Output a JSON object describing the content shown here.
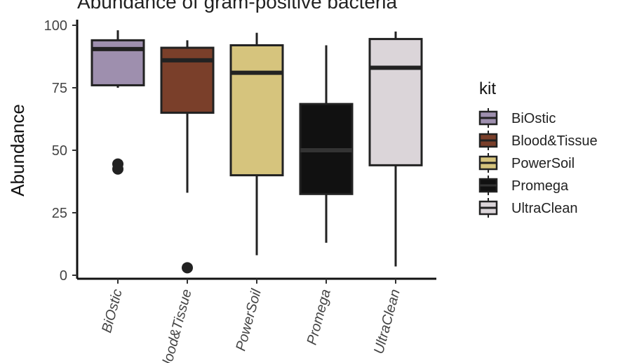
{
  "chart_data": {
    "type": "boxplot",
    "title": "Abundance of gram-positive bacteria",
    "ylabel": "Abundance",
    "xlabel": "",
    "ylim": [
      0,
      100
    ],
    "yticks": [
      0,
      25,
      50,
      75,
      100
    ],
    "categories": [
      "BiOstic",
      "Blood&Tissue",
      "PowerSoil",
      "Promega",
      "UltraClean"
    ],
    "boxes": [
      {
        "name": "BiOstic",
        "whisker_low": 75,
        "q1": 76,
        "median": 90.5,
        "q3": 94,
        "whisker_high": 98,
        "outliers": [
          42.5,
          44.5
        ],
        "fill": "#9e8fae"
      },
      {
        "name": "Blood&Tissue",
        "whisker_low": 33,
        "q1": 65,
        "median": 86,
        "q3": 91,
        "whisker_high": 94,
        "outliers": [
          3
        ],
        "fill": "#7a3f2a"
      },
      {
        "name": "PowerSoil",
        "whisker_low": 8,
        "q1": 40,
        "median": 81,
        "q3": 92,
        "whisker_high": 97,
        "outliers": [],
        "fill": "#d6c47d"
      },
      {
        "name": "Promega",
        "whisker_low": 13,
        "q1": 32.5,
        "median": 50,
        "q3": 68.5,
        "whisker_high": 92,
        "outliers": [],
        "fill": "#111111"
      },
      {
        "name": "UltraClean",
        "whisker_low": 3.5,
        "q1": 44,
        "median": 83,
        "q3": 94.5,
        "whisker_high": 97.5,
        "outliers": [],
        "fill": "#dbd5d9"
      }
    ],
    "legend": {
      "title": "kit",
      "placement": "right",
      "entries": [
        "BiOstic",
        "Blood&Tissue",
        "PowerSoil",
        "Promega",
        "UltraClean"
      ]
    },
    "grid": false
  }
}
